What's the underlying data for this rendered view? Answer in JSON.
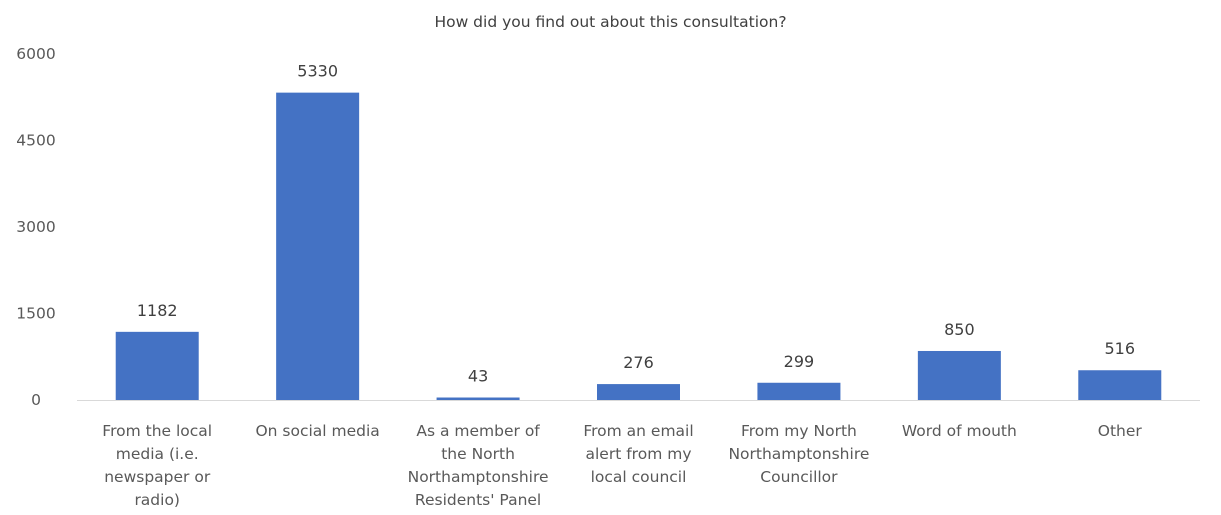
{
  "chart_data": {
    "type": "bar",
    "title": "How did you find out about this consultation?",
    "xlabel": "",
    "ylabel": "",
    "ylim": [
      0,
      6000
    ],
    "yticks": [
      0,
      1500,
      3000,
      4500,
      6000
    ],
    "grid": false,
    "legend": "none",
    "bar_color": "#4472C4",
    "categories": [
      [
        "From the local",
        "media (i.e.",
        "newspaper or",
        "radio)"
      ],
      [
        "On social media"
      ],
      [
        "As a member of",
        "the North",
        "Northamptonshire",
        "Residents' Panel"
      ],
      [
        "From an email",
        "alert from my",
        "local council"
      ],
      [
        "From my North",
        "Northamptonshire",
        "Councillor"
      ],
      [
        "Word of mouth"
      ],
      [
        "Other"
      ]
    ],
    "values": [
      1182,
      5330,
      43,
      276,
      299,
      850,
      516
    ]
  }
}
